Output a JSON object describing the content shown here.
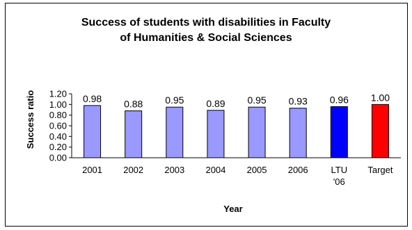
{
  "chart_data": {
    "type": "bar",
    "title_line1": "Success of students with disabilities in Faculty",
    "title_line2": "of Humanities & Social Sciences",
    "xlabel": "Year",
    "ylabel": "Success ratio",
    "ylim": [
      0,
      1.2
    ],
    "yticks": [
      "0.00",
      "0.20",
      "0.40",
      "0.60",
      "0.80",
      "1.00",
      "1.20"
    ],
    "grid": false,
    "categories": [
      "2001",
      "2002",
      "2003",
      "2004",
      "2005",
      "2006",
      "LTU '06",
      "Target"
    ],
    "values": [
      0.98,
      0.88,
      0.95,
      0.89,
      0.95,
      0.93,
      0.96,
      1.0
    ],
    "data_labels": [
      "0.98",
      "0.88",
      "0.95",
      "0.89",
      "0.95",
      "0.93",
      "0.96",
      "1.00"
    ],
    "colors": [
      "#9999ff",
      "#9999ff",
      "#9999ff",
      "#9999ff",
      "#9999ff",
      "#9999ff",
      "#0000ff",
      "#ff0000"
    ]
  }
}
